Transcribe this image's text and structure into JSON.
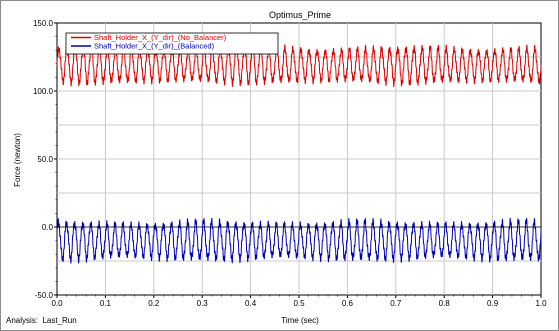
{
  "chart_data": {
    "type": "line",
    "title": "Optimus_Prime",
    "xlabel": "Time (sec)",
    "ylabel": "Force (newton)",
    "xlim": [
      0.0,
      1.0
    ],
    "ylim": [
      -50.0,
      150.0
    ],
    "x_ticks": [
      0.0,
      0.1,
      0.2,
      0.3,
      0.4,
      0.5,
      0.6,
      0.7,
      0.8,
      0.9,
      1.0
    ],
    "x_tick_labels": [
      "0.0",
      "0.1",
      "0.2",
      "0.3",
      "0.4",
      "0.5",
      "0.6",
      "0.7",
      "0.8",
      "0.9",
      "1.0"
    ],
    "y_ticks": [
      -50.0,
      0.0,
      50.0,
      100.0,
      150.0
    ],
    "y_tick_labels": [
      "-50.0",
      "0.0",
      "50.0",
      "100.0",
      "150.0"
    ],
    "grid": true,
    "legend_position": "top-left",
    "series": [
      {
        "name": "Shaft_Holder_X_(Y_dir)_(No_Balancer)",
        "color": "#dd0000",
        "mean": 119,
        "amplitude": 14,
        "frequency_hz": 60
      },
      {
        "name": "Shaft_Holder_X_(Y_dir)_(Balanced)",
        "color": "#0000bb",
        "mean": -10,
        "amplitude": 15,
        "frequency_hz": 60
      }
    ],
    "footer": "Analysis:  Last_Run"
  }
}
